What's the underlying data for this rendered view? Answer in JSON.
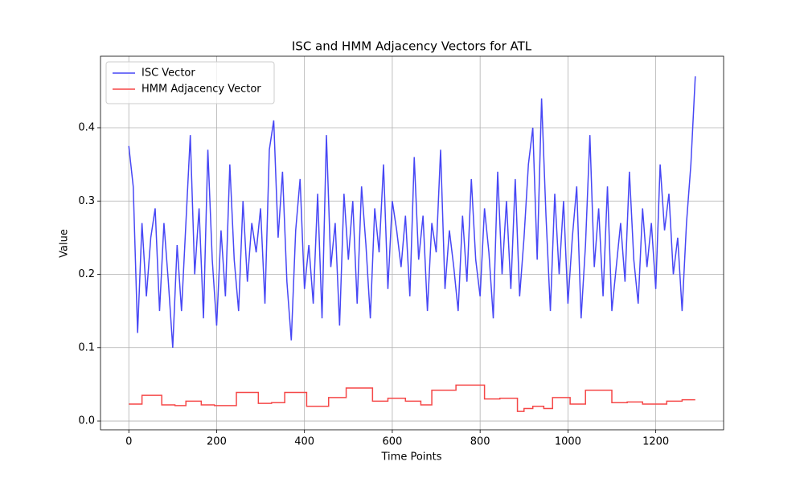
{
  "chart_data": {
    "type": "line",
    "title": "ISC and HMM Adjacency Vectors for ATL",
    "x_label": "Time Points",
    "y_label": "Value",
    "xlim": [
      -64.5,
      1354.5
    ],
    "ylim": [
      -0.012,
      0.4975
    ],
    "xticks": [
      0,
      200,
      400,
      600,
      800,
      1000,
      1200
    ],
    "yticks": [
      0.0,
      0.1,
      0.2,
      0.3,
      0.4
    ],
    "grid": true,
    "legend": "upper left",
    "series": [
      {
        "name": "ISC Vector",
        "color": "#4747f5",
        "step": false,
        "x": [
          0,
          10,
          20,
          30,
          40,
          50,
          60,
          70,
          80,
          90,
          100,
          110,
          120,
          130,
          140,
          150,
          160,
          170,
          180,
          190,
          200,
          210,
          220,
          230,
          240,
          250,
          260,
          270,
          280,
          290,
          300,
          310,
          320,
          330,
          340,
          350,
          360,
          370,
          380,
          390,
          400,
          410,
          420,
          430,
          440,
          450,
          460,
          470,
          480,
          490,
          500,
          510,
          520,
          530,
          540,
          550,
          560,
          570,
          580,
          590,
          600,
          610,
          620,
          630,
          640,
          650,
          660,
          670,
          680,
          690,
          700,
          710,
          720,
          730,
          740,
          750,
          760,
          770,
          780,
          790,
          800,
          810,
          820,
          830,
          840,
          850,
          860,
          870,
          880,
          890,
          900,
          910,
          920,
          930,
          940,
          950,
          960,
          970,
          980,
          990,
          1000,
          1010,
          1020,
          1030,
          1040,
          1050,
          1060,
          1070,
          1080,
          1090,
          1100,
          1110,
          1120,
          1130,
          1140,
          1150,
          1160,
          1170,
          1180,
          1190,
          1200,
          1210,
          1220,
          1230,
          1240,
          1250,
          1260,
          1270,
          1280,
          1290
        ],
        "values": [
          0.375,
          0.32,
          0.12,
          0.27,
          0.17,
          0.25,
          0.29,
          0.15,
          0.27,
          0.19,
          0.1,
          0.24,
          0.15,
          0.27,
          0.39,
          0.2,
          0.29,
          0.14,
          0.37,
          0.22,
          0.13,
          0.26,
          0.17,
          0.35,
          0.22,
          0.15,
          0.3,
          0.19,
          0.27,
          0.23,
          0.29,
          0.16,
          0.37,
          0.41,
          0.25,
          0.34,
          0.19,
          0.11,
          0.26,
          0.33,
          0.18,
          0.24,
          0.16,
          0.31,
          0.14,
          0.39,
          0.21,
          0.27,
          0.13,
          0.31,
          0.22,
          0.3,
          0.16,
          0.32,
          0.24,
          0.14,
          0.29,
          0.23,
          0.35,
          0.18,
          0.3,
          0.26,
          0.21,
          0.28,
          0.17,
          0.36,
          0.22,
          0.28,
          0.15,
          0.27,
          0.23,
          0.37,
          0.18,
          0.26,
          0.21,
          0.15,
          0.28,
          0.19,
          0.33,
          0.22,
          0.17,
          0.29,
          0.23,
          0.14,
          0.34,
          0.2,
          0.3,
          0.18,
          0.33,
          0.17,
          0.25,
          0.35,
          0.4,
          0.22,
          0.44,
          0.28,
          0.15,
          0.31,
          0.2,
          0.3,
          0.16,
          0.25,
          0.32,
          0.14,
          0.24,
          0.39,
          0.21,
          0.29,
          0.17,
          0.32,
          0.15,
          0.21,
          0.27,
          0.19,
          0.34,
          0.22,
          0.16,
          0.29,
          0.21,
          0.27,
          0.18,
          0.35,
          0.26,
          0.31,
          0.2,
          0.25,
          0.15,
          0.27,
          0.35,
          0.47
        ]
      },
      {
        "name": "HMM Adjacency Vector",
        "color": "#f54747",
        "step": true,
        "x": [
          0,
          30,
          75,
          105,
          130,
          165,
          195,
          245,
          295,
          325,
          355,
          405,
          455,
          495,
          555,
          590,
          630,
          665,
          690,
          745,
          810,
          845,
          885,
          900,
          920,
          945,
          965,
          1005,
          1040,
          1100,
          1135,
          1170,
          1225,
          1260,
          1290
        ],
        "values": [
          0.023,
          0.035,
          0.022,
          0.021,
          0.027,
          0.022,
          0.021,
          0.039,
          0.024,
          0.025,
          0.039,
          0.02,
          0.032,
          0.045,
          0.027,
          0.031,
          0.027,
          0.022,
          0.042,
          0.049,
          0.03,
          0.031,
          0.013,
          0.017,
          0.02,
          0.017,
          0.032,
          0.023,
          0.042,
          0.025,
          0.026,
          0.023,
          0.027,
          0.029,
          0.029
        ]
      }
    ]
  }
}
